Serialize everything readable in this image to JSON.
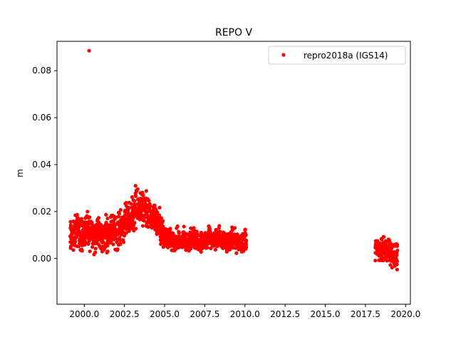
{
  "chart_data": {
    "type": "scatter",
    "title": "REPO V",
    "xlabel": "",
    "ylabel": "m",
    "xlim": [
      1998.3,
      2020.3
    ],
    "ylim": [
      -0.0195,
      0.0925
    ],
    "x_ticks": [
      2000.0,
      2002.5,
      2005.0,
      2007.5,
      2010.0,
      2012.5,
      2015.0,
      2017.5,
      2020.0
    ],
    "x_tick_labels": [
      "2000.0",
      "2002.5",
      "2005.0",
      "2007.5",
      "2010.0",
      "2012.5",
      "2015.0",
      "2017.5",
      "2020.0"
    ],
    "y_ticks": [
      0.0,
      0.02,
      0.04,
      0.06,
      0.08
    ],
    "y_tick_labels": [
      "0.00",
      "0.02",
      "0.04",
      "0.06",
      "0.08"
    ],
    "grid": false,
    "legend_position": "top-right",
    "marker_color": "#ff0000",
    "series": [
      {
        "name": "repro2018a (IGS14)",
        "color": "#ff0000",
        "x": [
          1999.2,
          1999.4,
          1999.6,
          1999.8,
          2000.0,
          2000.2,
          2000.3,
          2000.4,
          2000.6,
          2000.8,
          2001.0,
          2001.2,
          2001.4,
          2001.6,
          2001.8,
          2002.0,
          2002.2,
          2002.4,
          2002.6,
          2002.8,
          2003.0,
          2003.2,
          2003.4,
          2003.6,
          2003.8,
          2004.0,
          2004.2,
          2004.4,
          2004.6,
          2004.8,
          2005.0,
          2005.2,
          2005.4,
          2005.6,
          2005.8,
          2006.0,
          2006.2,
          2006.4,
          2006.6,
          2006.8,
          2007.0,
          2007.2,
          2007.4,
          2007.6,
          2007.8,
          2008.0,
          2008.2,
          2008.4,
          2008.6,
          2008.8,
          2009.0,
          2009.2,
          2009.4,
          2009.6,
          2009.8,
          2010.0,
          2018.2,
          2018.4,
          2018.6,
          2018.8,
          2019.0,
          2019.2,
          2019.4
        ],
        "y": [
          0.009,
          0.011,
          0.012,
          0.01,
          0.011,
          0.012,
          0.0885,
          0.011,
          0.01,
          0.011,
          0.01,
          0.009,
          0.011,
          0.012,
          0.012,
          0.011,
          0.013,
          0.014,
          0.016,
          0.017,
          0.019,
          0.021,
          0.022,
          0.021,
          0.02,
          0.018,
          0.017,
          0.016,
          0.015,
          0.012,
          0.009,
          0.008,
          0.008,
          0.007,
          0.008,
          0.007,
          0.008,
          0.007,
          0.008,
          0.008,
          0.008,
          0.007,
          0.008,
          0.008,
          0.009,
          0.008,
          0.008,
          0.009,
          0.008,
          0.008,
          0.007,
          0.008,
          0.008,
          0.007,
          0.007,
          0.008,
          0.004,
          0.003,
          0.004,
          0.003,
          0.002,
          0.002,
          0.001
        ],
        "spread": [
          0.006,
          0.006,
          0.006,
          0.006,
          0.006,
          0.006,
          0.0,
          0.006,
          0.006,
          0.006,
          0.006,
          0.006,
          0.006,
          0.006,
          0.006,
          0.006,
          0.006,
          0.006,
          0.006,
          0.006,
          0.006,
          0.007,
          0.007,
          0.007,
          0.007,
          0.006,
          0.006,
          0.006,
          0.006,
          0.006,
          0.004,
          0.004,
          0.004,
          0.004,
          0.004,
          0.004,
          0.004,
          0.004,
          0.004,
          0.004,
          0.004,
          0.004,
          0.004,
          0.004,
          0.004,
          0.004,
          0.004,
          0.004,
          0.004,
          0.004,
          0.004,
          0.004,
          0.004,
          0.004,
          0.004,
          0.005,
          0.004,
          0.004,
          0.004,
          0.004,
          0.005,
          0.005,
          0.006
        ]
      }
    ]
  }
}
